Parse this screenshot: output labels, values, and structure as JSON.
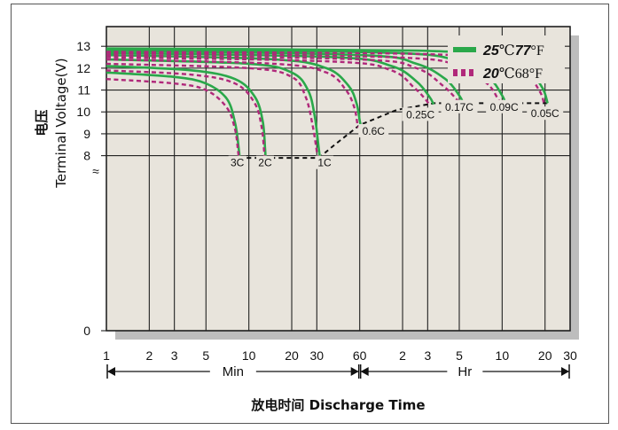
{
  "chart_data": {
    "type": "line",
    "title": "",
    "ylabel_cn": "电压",
    "ylabel": "Terminal Voltage(V)",
    "xlabel": "放电时间 Discharge Time",
    "ylim": [
      0,
      13.9
    ],
    "y_ticks": [
      0,
      8,
      9,
      10,
      11,
      12,
      13
    ],
    "y_break_symbol": "≈",
    "x_scale": "log",
    "x_ticks": [
      {
        "label": "1",
        "minutes": 1
      },
      {
        "label": "2",
        "minutes": 2
      },
      {
        "label": "3",
        "minutes": 3
      },
      {
        "label": "5",
        "minutes": 5
      },
      {
        "label": "10",
        "minutes": 10
      },
      {
        "label": "20",
        "minutes": 20
      },
      {
        "label": "30",
        "minutes": 30
      },
      {
        "label": "60",
        "minutes": 60
      },
      {
        "label": "2",
        "minutes": 120
      },
      {
        "label": "3",
        "minutes": 180
      },
      {
        "label": "5",
        "minutes": 300
      },
      {
        "label": "10",
        "minutes": 600
      },
      {
        "label": "20",
        "minutes": 1200
      },
      {
        "label": "30",
        "minutes": 1800
      }
    ],
    "x_ranges": [
      {
        "label": "Min",
        "from_minutes": 1,
        "to_minutes": 60
      },
      {
        "label": "Hr",
        "from_minutes": 60,
        "to_minutes": 1800
      }
    ],
    "legend": [
      {
        "bold": "25",
        "rest": "℃",
        "bold2": "77",
        "rest2": "°F",
        "color": "#2aa84a",
        "style": "solid"
      },
      {
        "bold": "20",
        "rest": "℃68",
        "bold2": "",
        "rest2": "°F",
        "color": "#b0287a",
        "style": "dashed"
      }
    ],
    "legend_position": "top-right",
    "series": [
      {
        "rate": "3C",
        "condition": "25℃77°F",
        "points": [
          [
            1,
            11.8
          ],
          [
            3,
            11.6
          ],
          [
            5,
            11.3
          ],
          [
            7,
            10.6
          ],
          [
            8,
            9.5
          ],
          [
            8.5,
            8.3
          ],
          [
            8.6,
            7.9
          ]
        ]
      },
      {
        "rate": "3C",
        "condition": "20℃68°F",
        "points": [
          [
            1,
            11.5
          ],
          [
            3,
            11.3
          ],
          [
            5,
            11.0
          ],
          [
            7,
            10.2
          ],
          [
            8,
            9.2
          ],
          [
            8.4,
            8.2
          ],
          [
            8.5,
            7.9
          ]
        ]
      },
      {
        "rate": "2C",
        "condition": "25℃77°F",
        "points": [
          [
            1,
            12.1
          ],
          [
            4,
            11.9
          ],
          [
            8,
            11.5
          ],
          [
            11,
            10.7
          ],
          [
            12.5,
            9.6
          ],
          [
            13,
            8.3
          ],
          [
            13.1,
            7.9
          ]
        ]
      },
      {
        "rate": "2C",
        "condition": "20℃68°F",
        "points": [
          [
            1,
            11.9
          ],
          [
            4,
            11.7
          ],
          [
            8,
            11.3
          ],
          [
            11,
            10.4
          ],
          [
            12.3,
            9.3
          ],
          [
            12.8,
            8.2
          ],
          [
            12.9,
            7.9
          ]
        ]
      },
      {
        "rate": "1C",
        "condition": "25℃77°F",
        "points": [
          [
            1,
            12.4
          ],
          [
            10,
            12.2
          ],
          [
            20,
            11.8
          ],
          [
            26,
            11.0
          ],
          [
            29,
            9.8
          ],
          [
            31,
            8.3
          ],
          [
            31.5,
            7.9
          ]
        ]
      },
      {
        "rate": "1C",
        "condition": "20℃68°F",
        "points": [
          [
            1,
            12.2
          ],
          [
            10,
            12.0
          ],
          [
            20,
            11.6
          ],
          [
            25,
            10.7
          ],
          [
            28,
            9.4
          ],
          [
            30,
            8.2
          ],
          [
            30.5,
            7.9
          ]
        ]
      },
      {
        "rate": "0.6C",
        "condition": "25℃77°F",
        "points": [
          [
            1,
            12.6
          ],
          [
            15,
            12.4
          ],
          [
            35,
            12.0
          ],
          [
            50,
            11.2
          ],
          [
            57,
            10.4
          ],
          [
            60,
            9.6
          ],
          [
            61,
            9.4
          ]
        ]
      },
      {
        "rate": "0.6C",
        "condition": "20℃68°F",
        "points": [
          [
            1,
            12.4
          ],
          [
            15,
            12.2
          ],
          [
            35,
            11.8
          ],
          [
            48,
            11.0
          ],
          [
            55,
            10.2
          ],
          [
            58,
            9.4
          ],
          [
            59,
            9.3
          ]
        ]
      },
      {
        "rate": "0.25C",
        "condition": "25℃77°F",
        "points": [
          [
            1,
            12.7
          ],
          [
            40,
            12.5
          ],
          [
            100,
            12.1
          ],
          [
            150,
            11.4
          ],
          [
            185,
            10.7
          ],
          [
            198,
            10.35
          ]
        ]
      },
      {
        "rate": "0.25C",
        "condition": "20℃68°F",
        "points": [
          [
            1,
            12.5
          ],
          [
            40,
            12.3
          ],
          [
            100,
            11.9
          ],
          [
            145,
            11.1
          ],
          [
            175,
            10.55
          ],
          [
            185,
            10.3
          ]
        ]
      },
      {
        "rate": "0.17C",
        "condition": "25℃77°F",
        "points": [
          [
            1,
            12.8
          ],
          [
            60,
            12.6
          ],
          [
            150,
            12.2
          ],
          [
            240,
            11.5
          ],
          [
            300,
            10.75
          ],
          [
            320,
            10.4
          ]
        ]
      },
      {
        "rate": "0.17C",
        "condition": "20℃68°F",
        "points": [
          [
            1,
            12.6
          ],
          [
            60,
            12.4
          ],
          [
            150,
            12.0
          ],
          [
            230,
            11.2
          ],
          [
            285,
            10.6
          ],
          [
            300,
            10.4
          ]
        ]
      },
      {
        "rate": "0.09C",
        "condition": "25℃77°F",
        "points": [
          [
            1,
            12.85
          ],
          [
            100,
            12.7
          ],
          [
            300,
            12.3
          ],
          [
            480,
            11.6
          ],
          [
            600,
            10.75
          ],
          [
            630,
            10.4
          ]
        ]
      },
      {
        "rate": "0.09C",
        "condition": "20℃68°F",
        "points": [
          [
            1,
            12.7
          ],
          [
            100,
            12.5
          ],
          [
            300,
            12.1
          ],
          [
            470,
            11.3
          ],
          [
            560,
            10.6
          ],
          [
            585,
            10.4
          ]
        ]
      },
      {
        "rate": "0.05C",
        "condition": "25℃77°F",
        "points": [
          [
            1,
            12.9
          ],
          [
            150,
            12.8
          ],
          [
            500,
            12.5
          ],
          [
            900,
            11.9
          ],
          [
            1150,
            11.1
          ],
          [
            1250,
            10.4
          ]
        ]
      },
      {
        "rate": "0.05C",
        "condition": "20℃68°F",
        "points": [
          [
            1,
            12.75
          ],
          [
            150,
            12.65
          ],
          [
            500,
            12.35
          ],
          [
            880,
            11.7
          ],
          [
            1100,
            10.95
          ],
          [
            1180,
            10.4
          ]
        ]
      }
    ],
    "end_voltage_line": {
      "points": [
        [
          8.5,
          7.9
        ],
        [
          31,
          7.9
        ],
        [
          40,
          8.5
        ],
        [
          60,
          9.4
        ],
        [
          110,
          10.1
        ],
        [
          200,
          10.4
        ],
        [
          1250,
          10.4
        ]
      ]
    },
    "rate_labels": [
      "3C",
      "2C",
      "1C",
      "0.6C",
      "0.25C",
      "0.17C",
      "0.09C",
      "0.05C"
    ],
    "grid": true,
    "colors": {
      "solid": "#2aa84a",
      "dashed": "#b0287a",
      "plot_bg": "#e8e4dc",
      "shadow": "#bdbdbd"
    }
  }
}
